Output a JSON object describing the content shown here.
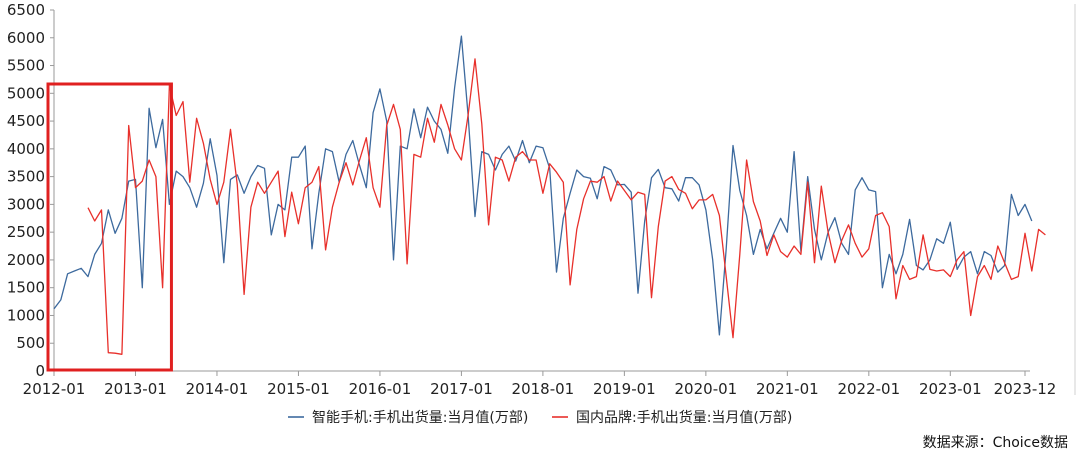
{
  "chart_data": {
    "type": "line",
    "y_ticks": [
      0,
      500,
      1000,
      1500,
      2000,
      2500,
      3000,
      3500,
      4000,
      4500,
      5000,
      5500,
      6000,
      6500
    ],
    "ylim": [
      0,
      6500
    ],
    "x_tick_labels": [
      "2012-01",
      "2013-01",
      "2014-01",
      "2015-01",
      "2016-01",
      "2017-01",
      "2018-01",
      "2019-01",
      "2020-01",
      "2021-01",
      "2022-01",
      "2023-01",
      "2023-12"
    ],
    "x_start": "2012-01",
    "x_end": "2023-12",
    "series": [
      {
        "name": "智能手机:手机出货量:当月值(万部)",
        "color": "#3d6a9e",
        "start": "2012-01",
        "values": [
          1120,
          1280,
          1750,
          1800,
          1850,
          1700,
          2100,
          2300,
          2900,
          2480,
          2750,
          3420,
          3450,
          1500,
          4730,
          4020,
          4530,
          3000,
          3600,
          3500,
          3300,
          2950,
          3380,
          4180,
          3520,
          1950,
          3450,
          3530,
          3200,
          3500,
          3700,
          3650,
          2450,
          3000,
          2900,
          3850,
          3850,
          4050,
          2200,
          3200,
          4000,
          3950,
          3400,
          3900,
          4150,
          3700,
          3300,
          4650,
          5080,
          4500,
          2000,
          4050,
          4000,
          4720,
          4200,
          4750,
          4500,
          4350,
          3920,
          5100,
          6030,
          4580,
          2780,
          3950,
          3900,
          3620,
          3900,
          4050,
          3780,
          4150,
          3750,
          4050,
          4020,
          3650,
          1780,
          2750,
          3200,
          3620,
          3500,
          3470,
          3100,
          3680,
          3620,
          3350,
          3360,
          3220,
          1400,
          2700,
          3480,
          3630,
          3300,
          3280,
          3060,
          3480,
          3480,
          3350,
          2900,
          2000,
          650,
          2200,
          4060,
          3250,
          2800,
          2100,
          2550,
          2200,
          2480,
          2750,
          2500,
          3950,
          2150,
          3500,
          2550,
          2000,
          2500,
          2760,
          2300,
          2100,
          3260,
          3480,
          3260,
          3230,
          1500,
          2100,
          1750,
          2100,
          2730,
          1900,
          1820,
          2000,
          2380,
          2300,
          2680,
          1830,
          2050,
          2150,
          1750,
          2150,
          2080,
          1780,
          1900,
          3180,
          2800,
          3000,
          2700
        ]
      },
      {
        "name": "国内品牌:手机出货量:当月值(万部)",
        "color": "#e8302b",
        "start": "2012-06",
        "values": [
          2940,
          2700,
          2900,
          330,
          320,
          300,
          4420,
          3300,
          3420,
          3800,
          3500,
          1500,
          5150,
          4600,
          4850,
          3400,
          4550,
          4100,
          3450,
          3000,
          3400,
          4350,
          3350,
          1380,
          2950,
          3400,
          3200,
          3400,
          3600,
          2420,
          3220,
          2650,
          3300,
          3400,
          3680,
          2180,
          2950,
          3400,
          3750,
          3350,
          3800,
          4200,
          3300,
          2950,
          4420,
          4800,
          4350,
          1930,
          3900,
          3850,
          4550,
          4120,
          4800,
          4430,
          4000,
          3800,
          4620,
          5620,
          4450,
          2630,
          3850,
          3800,
          3420,
          3850,
          3950,
          3800,
          3800,
          3200,
          3730,
          3580,
          3400,
          1550,
          2550,
          3100,
          3420,
          3400,
          3500,
          3060,
          3420,
          3250,
          3080,
          3220,
          3180,
          1320,
          2600,
          3420,
          3500,
          3270,
          3200,
          2920,
          3080,
          3080,
          3180,
          2800,
          1700,
          600,
          2100,
          3800,
          3050,
          2700,
          2080,
          2450,
          2150,
          2050,
          2250,
          2100,
          3400,
          1950,
          3330,
          2500,
          1950,
          2350,
          2630,
          2300,
          2050,
          2200,
          2800,
          2850,
          2600,
          1300,
          1900,
          1650,
          1700,
          2450,
          1830,
          1800,
          1820,
          1700,
          2000,
          2150,
          1000,
          1700,
          1900,
          1650,
          2250,
          1950,
          1650,
          1700,
          2480,
          1800,
          2550,
          2450
        ]
      }
    ],
    "legend_position": "bottom",
    "source": "数据来源：Choice数据",
    "annotation": {
      "type": "rectangle",
      "from": "2012-01",
      "to": "2013-06",
      "color": "#e02020"
    }
  }
}
